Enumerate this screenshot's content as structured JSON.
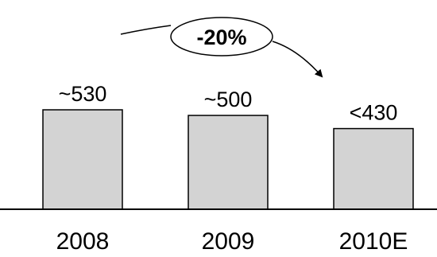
{
  "chart_data": {
    "type": "bar",
    "categories": [
      "2008",
      "2009",
      "2010E"
    ],
    "values": [
      530,
      500,
      430
    ],
    "data_labels": [
      "~530",
      "~500",
      "<430"
    ],
    "annotation": "-20%",
    "colors": {
      "bar_fill": "#d3d3d3",
      "bar_stroke": "#000000",
      "text": "#000000"
    }
  }
}
